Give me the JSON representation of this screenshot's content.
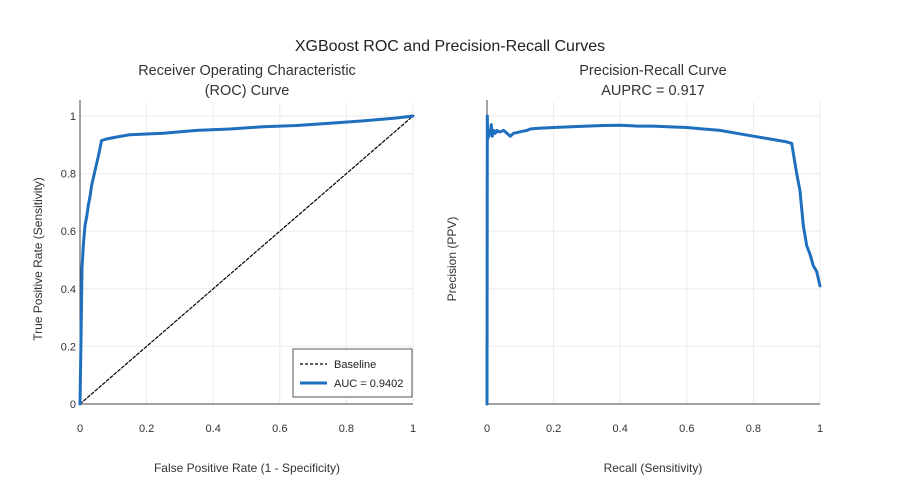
{
  "figure": {
    "title": "XGBoost ROC and Precision-Recall Curves"
  },
  "chart_data": [
    {
      "type": "line",
      "title": "Receiver Operating Characteristic (ROC) Curve",
      "title_lines": [
        "Receiver Operating Characteristic",
        "(ROC) Curve"
      ],
      "xlabel": "False Positive Rate (1 - Specificity)",
      "ylabel": "True Positive Rate (Sensitivity)",
      "xlim": [
        0,
        1
      ],
      "ylim": [
        0,
        1
      ],
      "x_ticks": [
        0,
        0.2,
        0.4,
        0.6,
        0.8,
        1
      ],
      "x_tick_labels": [
        "0",
        "0.2",
        "0.4",
        "0.6",
        "0.8",
        "1"
      ],
      "y_ticks": [
        0,
        0.2,
        0.4,
        0.6,
        0.8,
        1
      ],
      "y_tick_labels": [
        "0",
        "0.2",
        "0.4",
        "0.6",
        "0.8",
        "1"
      ],
      "grid": true,
      "legend_position": "bottom-right",
      "series": [
        {
          "name": "Baseline",
          "style": "dotted",
          "color": "#000000",
          "x": [
            0,
            1
          ],
          "y": [
            0,
            1
          ]
        },
        {
          "name": "AUC = 0.9402",
          "style": "solid",
          "color": "#1f6fbf",
          "x": [
            0,
            0.003,
            0.006,
            0.01,
            0.015,
            0.02,
            0.025,
            0.03,
            0.035,
            0.045,
            0.055,
            0.065,
            0.08,
            0.1,
            0.15,
            0.25,
            0.35,
            0.45,
            0.55,
            0.65,
            0.75,
            0.85,
            0.95,
            1.0
          ],
          "y": [
            0,
            0.22,
            0.47,
            0.55,
            0.62,
            0.65,
            0.69,
            0.72,
            0.76,
            0.81,
            0.86,
            0.915,
            0.92,
            0.925,
            0.935,
            0.94,
            0.95,
            0.955,
            0.963,
            0.967,
            0.975,
            0.983,
            0.993,
            1.0
          ]
        }
      ]
    },
    {
      "type": "line",
      "title": "Precision-Recall Curve",
      "title_lines": [
        "Precision-Recall Curve",
        "AUPRC = 0.917"
      ],
      "xlabel": "Recall (Sensitivity)",
      "ylabel": "Precision (PPV)",
      "xlim": [
        0,
        1
      ],
      "ylim": [
        0,
        1
      ],
      "x_ticks": [
        0,
        0.2,
        0.4,
        0.6,
        0.8,
        1
      ],
      "x_tick_labels": [
        "0",
        "0.2",
        "0.4",
        "0.6",
        "0.8",
        "1"
      ],
      "y_ticks": [
        0,
        0.2,
        0.4,
        0.6,
        0.8,
        1
      ],
      "y_tick_labels": [
        "",
        "",
        "",
        "",
        "",
        ""
      ],
      "grid": true,
      "series": [
        {
          "name": "",
          "style": "solid",
          "color": "#1f6fbf",
          "x": [
            0,
            0.001,
            0.002,
            0.004,
            0.006,
            0.008,
            0.01,
            0.013,
            0.016,
            0.02,
            0.025,
            0.03,
            0.035,
            0.04,
            0.05,
            0.06,
            0.07,
            0.08,
            0.1,
            0.12,
            0.13,
            0.15,
            0.2,
            0.3,
            0.35,
            0.4,
            0.45,
            0.5,
            0.55,
            0.6,
            0.65,
            0.7,
            0.75,
            0.8,
            0.85,
            0.9,
            0.915,
            0.93,
            0.94,
            0.95,
            0.96,
            0.97,
            0.98,
            0.99,
            1.0
          ],
          "y": [
            0.0,
            1.0,
            0.92,
            0.95,
            0.93,
            0.95,
            0.94,
            0.97,
            0.93,
            0.95,
            0.94,
            0.95,
            0.945,
            0.945,
            0.95,
            0.94,
            0.93,
            0.94,
            0.945,
            0.95,
            0.955,
            0.957,
            0.96,
            0.965,
            0.967,
            0.968,
            0.965,
            0.965,
            0.962,
            0.96,
            0.955,
            0.95,
            0.94,
            0.93,
            0.92,
            0.91,
            0.905,
            0.8,
            0.74,
            0.62,
            0.55,
            0.52,
            0.48,
            0.46,
            0.41
          ]
        }
      ]
    }
  ]
}
